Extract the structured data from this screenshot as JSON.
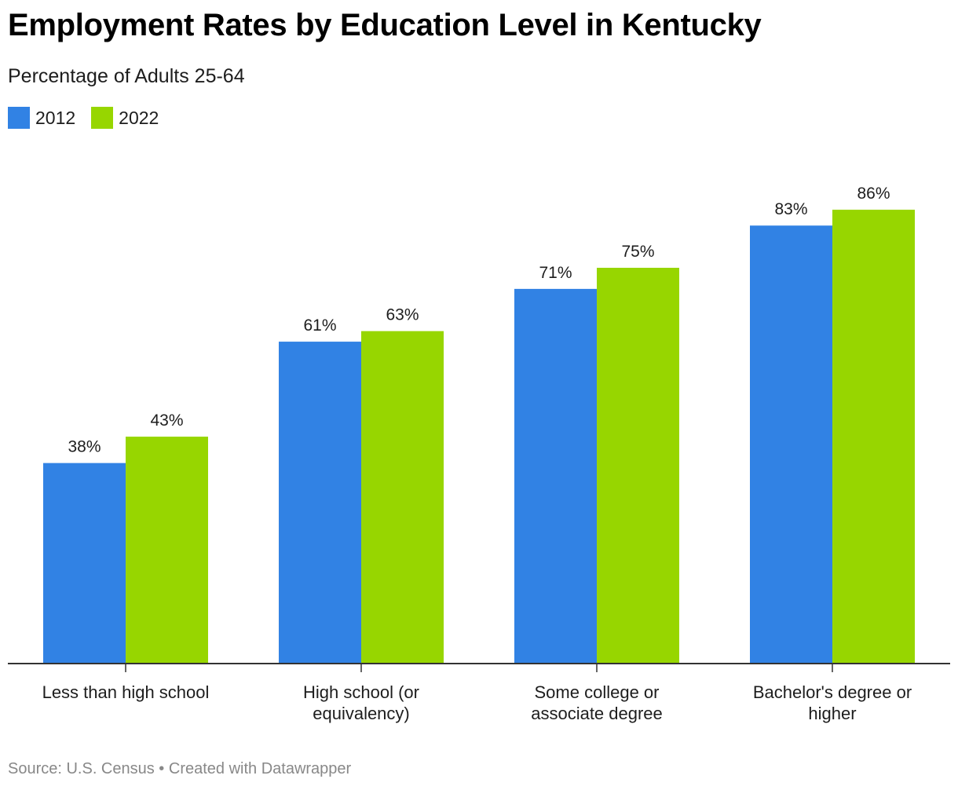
{
  "chart_data": {
    "type": "bar",
    "title": "Employment Rates by Education Level in Kentucky",
    "subtitle": "Percentage of Adults 25-64",
    "categories": [
      [
        "Less than high school"
      ],
      [
        "High school (or",
        "equivalency)"
      ],
      [
        "Some college or",
        "associate degree"
      ],
      [
        "Bachelor's degree or",
        "higher"
      ]
    ],
    "series": [
      {
        "name": "2012",
        "color": "#3182e4",
        "values": [
          38,
          61,
          71,
          83
        ]
      },
      {
        "name": "2022",
        "color": "#97d600",
        "values": [
          43,
          63,
          75,
          86
        ]
      }
    ],
    "value_suffix": "%",
    "ylim": [
      0,
      86
    ],
    "grid": false,
    "legend_position": "top-left"
  },
  "footer": {
    "source": "Source: U.S. Census",
    "separator": " • ",
    "credit": "Created with Datawrapper"
  }
}
